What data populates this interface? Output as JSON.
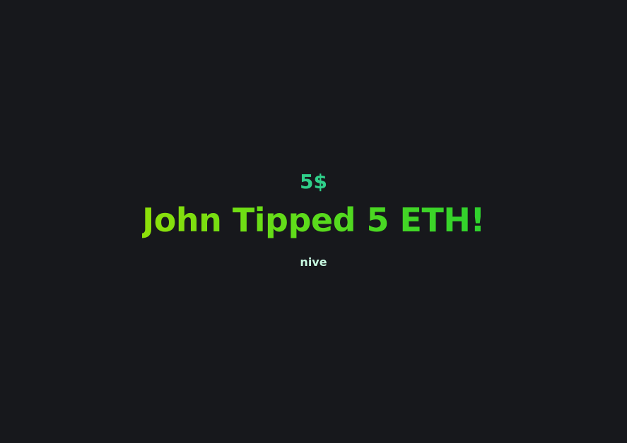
{
  "alert": {
    "amount": "5$",
    "headline": "John Tipped 5 ETH!",
    "message": "nive"
  },
  "colors": {
    "background": "#17181c",
    "amount": "#2fd08a",
    "headline_start": "#8ee00a",
    "headline_end": "#2ed22e",
    "message": "#c6f7df"
  }
}
